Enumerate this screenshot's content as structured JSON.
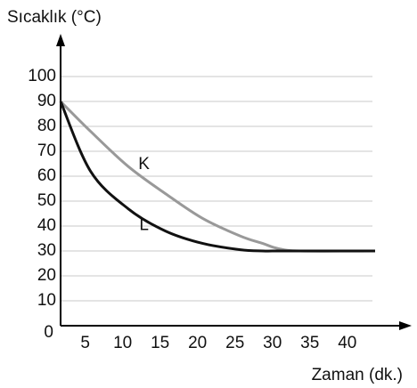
{
  "chart_data": {
    "type": "line",
    "y_label": "Sıcaklık (°C)",
    "x_label": "Zaman (dk.)",
    "x": [
      1,
      5,
      10,
      15,
      20,
      25,
      28,
      30,
      33,
      43
    ],
    "series": [
      {
        "name": "K",
        "color": "#999999",
        "values": [
          90,
          78,
          64,
          53,
          43,
          36,
          33,
          31,
          30,
          30
        ]
      },
      {
        "name": "L",
        "color": "#111111",
        "values": [
          90,
          62,
          47,
          38,
          33,
          30.5,
          30,
          30,
          30,
          30
        ]
      }
    ],
    "xlim": [
      1,
      48
    ],
    "xticks": [
      5,
      10,
      15,
      20,
      25,
      30,
      35,
      40
    ],
    "ylim": [
      0,
      100
    ],
    "yticks": [
      0,
      10,
      20,
      30,
      40,
      50,
      60,
      70,
      80,
      90,
      100
    ],
    "grid": true
  }
}
